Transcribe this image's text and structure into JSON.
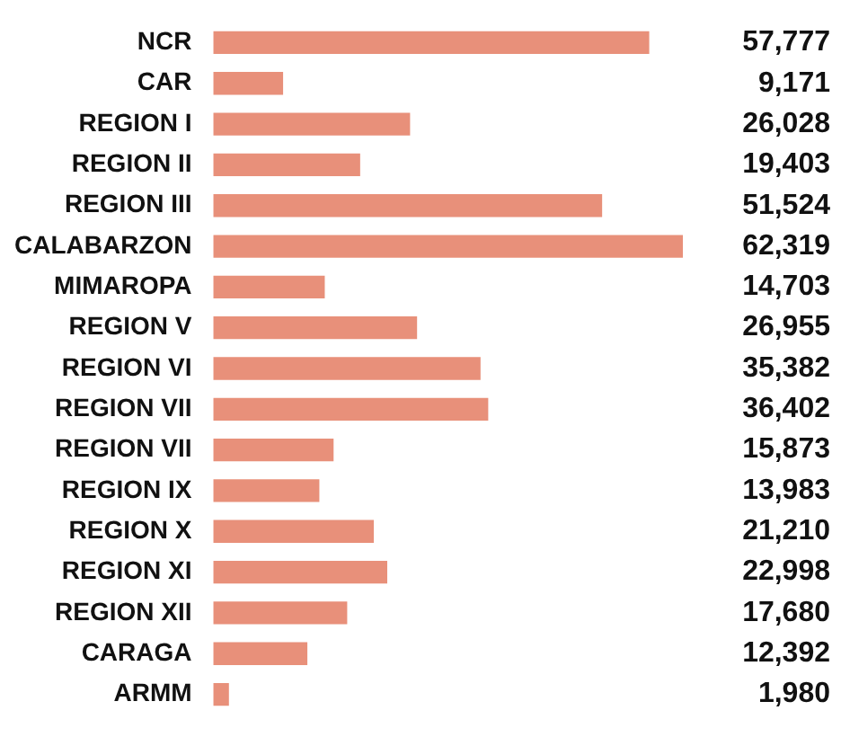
{
  "chart_data": {
    "type": "bar",
    "orientation": "horizontal",
    "value_labels": [
      "57,777",
      "9,171",
      "26,028",
      "19,403",
      "51,524",
      "62,319",
      "14,703",
      "26,955",
      "35,382",
      "36,402",
      "15,873",
      "13,983",
      "21,210",
      "22,998",
      "17,680",
      "12,392",
      "1,980"
    ],
    "categories": [
      "NCR",
      "CAR",
      "REGION I",
      "REGION II",
      "REGION III",
      "CALABARZON",
      "MIMAROPA",
      "REGION V",
      "REGION VI",
      "REGION VII",
      "REGION VII",
      "REGION IX",
      "REGION X",
      "REGION XI",
      "REGION XII",
      "CARAGA",
      "ARMM"
    ],
    "values": [
      57777,
      9171,
      26028,
      19403,
      51524,
      62319,
      14703,
      26955,
      35382,
      36402,
      15873,
      13983,
      21210,
      22998,
      17680,
      12392,
      1980
    ],
    "color": "#e8907a"
  }
}
